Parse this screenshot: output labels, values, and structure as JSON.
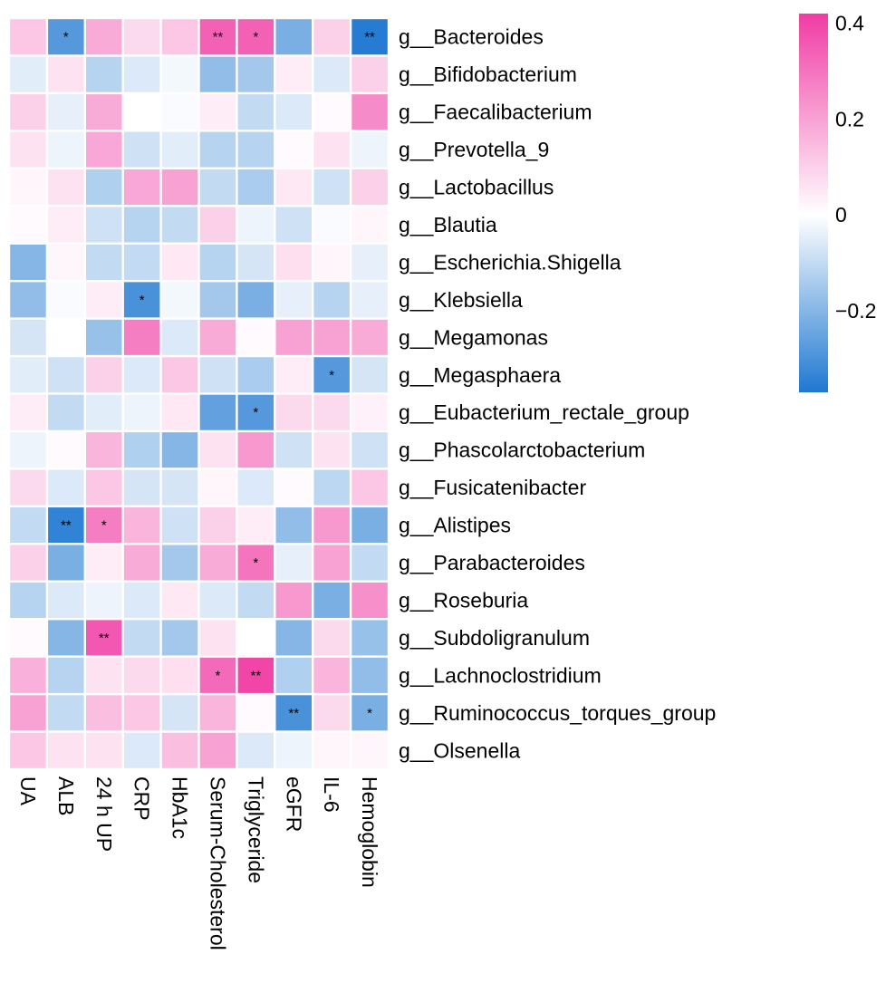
{
  "chart_data": {
    "type": "heatmap",
    "title": "",
    "columns": [
      "UA",
      "ALB",
      "24 h UP",
      "CRP",
      "HbA1c",
      "Serum-Cholesterol",
      "Triglyceride",
      "eGFR",
      "IL-6",
      "Hemoglobin"
    ],
    "rows": [
      "g__Bacteroides",
      "g__Bifidobacterium",
      "g__Faecalibacterium",
      "g__Prevotella_9",
      "g__Lactobacillus",
      "g__Blautia",
      "g__Escherichia.Shigella",
      "g__Klebsiella",
      "g__Megamonas",
      "g__Megasphaera",
      "g__Eubacterium_rectale_group",
      "g__Phascolarctobacterium",
      "g__Fusicatenibacter",
      "g__Alistipes",
      "g__Parabacteroides",
      "g__Roseburia",
      "g__Subdoligranulum",
      "g__Lachnoclostridium",
      "g__Ruminococcus_torques_group",
      "g__Olsenella"
    ],
    "values": [
      [
        0.12,
        -0.28,
        0.18,
        0.08,
        0.12,
        0.34,
        0.34,
        -0.22,
        0.1,
        -0.36
      ],
      [
        -0.05,
        0.06,
        -0.12,
        -0.06,
        -0.02,
        -0.18,
        -0.15,
        0.04,
        -0.06,
        0.1
      ],
      [
        0.1,
        -0.04,
        0.18,
        0.0,
        -0.01,
        0.04,
        -0.1,
        -0.06,
        0.01,
        0.25
      ],
      [
        0.06,
        -0.03,
        0.19,
        -0.08,
        -0.05,
        -0.12,
        -0.12,
        0.01,
        0.06,
        -0.03
      ],
      [
        0.02,
        0.06,
        -0.13,
        0.19,
        0.2,
        -0.1,
        -0.14,
        0.05,
        -0.08,
        0.1
      ],
      [
        0.01,
        0.04,
        -0.08,
        -0.12,
        -0.1,
        0.1,
        -0.03,
        -0.08,
        -0.01,
        0.02
      ],
      [
        -0.2,
        0.02,
        -0.1,
        -0.1,
        0.05,
        -0.12,
        -0.07,
        0.07,
        0.02,
        -0.04
      ],
      [
        -0.18,
        -0.01,
        0.04,
        -0.3,
        -0.02,
        -0.15,
        -0.22,
        -0.04,
        -0.12,
        -0.04
      ],
      [
        -0.07,
        0.0,
        -0.17,
        0.28,
        -0.06,
        0.18,
        0.01,
        0.2,
        0.2,
        0.18
      ],
      [
        -0.05,
        -0.08,
        0.1,
        -0.06,
        0.12,
        -0.08,
        -0.14,
        0.04,
        -0.28,
        -0.07
      ],
      [
        0.04,
        -0.1,
        -0.05,
        -0.03,
        0.05,
        -0.26,
        -0.28,
        0.08,
        0.08,
        0.03
      ],
      [
        -0.03,
        0.01,
        0.16,
        -0.13,
        -0.2,
        0.06,
        0.22,
        -0.08,
        0.06,
        -0.08
      ],
      [
        0.08,
        -0.06,
        0.12,
        -0.07,
        -0.07,
        0.02,
        -0.06,
        0.01,
        -0.11,
        0.12
      ],
      [
        -0.1,
        -0.34,
        0.28,
        0.16,
        -0.08,
        0.1,
        0.04,
        -0.18,
        0.22,
        -0.22
      ],
      [
        0.1,
        -0.22,
        0.04,
        0.18,
        -0.15,
        0.18,
        0.3,
        -0.04,
        0.2,
        -0.1
      ],
      [
        -0.12,
        -0.06,
        -0.03,
        -0.06,
        0.05,
        -0.06,
        -0.1,
        0.22,
        -0.22,
        0.24
      ],
      [
        0.01,
        -0.2,
        0.36,
        -0.1,
        -0.15,
        0.06,
        0.0,
        -0.2,
        0.08,
        -0.17
      ],
      [
        0.17,
        -0.12,
        0.06,
        0.08,
        0.07,
        0.32,
        0.4,
        -0.13,
        0.16,
        -0.18
      ],
      [
        0.2,
        -0.1,
        0.14,
        0.12,
        -0.07,
        0.16,
        0.01,
        -0.3,
        0.08,
        -0.22
      ],
      [
        0.12,
        0.06,
        0.06,
        -0.06,
        0.14,
        0.2,
        -0.06,
        -0.03,
        0.02,
        0.02
      ]
    ],
    "annotations": [
      [
        "",
        "*",
        "",
        "",
        "",
        "**",
        "*",
        "",
        "",
        "**"
      ],
      [
        "",
        "",
        "",
        "",
        "",
        "",
        "",
        "",
        "",
        ""
      ],
      [
        "",
        "",
        "",
        "",
        "",
        "",
        "",
        "",
        "",
        ""
      ],
      [
        "",
        "",
        "",
        "",
        "",
        "",
        "",
        "",
        "",
        ""
      ],
      [
        "",
        "",
        "",
        "",
        "",
        "",
        "",
        "",
        "",
        ""
      ],
      [
        "",
        "",
        "",
        "",
        "",
        "",
        "",
        "",
        "",
        ""
      ],
      [
        "",
        "",
        "",
        "",
        "",
        "",
        "",
        "",
        "",
        ""
      ],
      [
        "",
        "",
        "",
        "*",
        "",
        "",
        "",
        "",
        "",
        ""
      ],
      [
        "",
        "",
        "",
        "",
        "",
        "",
        "",
        "",
        "",
        ""
      ],
      [
        "",
        "",
        "",
        "",
        "",
        "",
        "",
        "",
        "*",
        ""
      ],
      [
        "",
        "",
        "",
        "",
        "",
        "",
        "*",
        "",
        "",
        ""
      ],
      [
        "",
        "",
        "",
        "",
        "",
        "",
        "",
        "",
        "",
        ""
      ],
      [
        "",
        "",
        "",
        "",
        "",
        "",
        "",
        "",
        "",
        ""
      ],
      [
        "",
        "**",
        "*",
        "",
        "",
        "",
        "",
        "",
        "",
        ""
      ],
      [
        "",
        "",
        "",
        "",
        "",
        "",
        "*",
        "",
        "",
        ""
      ],
      [
        "",
        "",
        "",
        "",
        "",
        "",
        "",
        "",
        "",
        ""
      ],
      [
        "",
        "",
        "**",
        "",
        "",
        "",
        "",
        "",
        "",
        ""
      ],
      [
        "",
        "",
        "",
        "",
        "",
        "*",
        "**",
        "",
        "",
        ""
      ],
      [
        "",
        "",
        "",
        "",
        "",
        "",
        "",
        "**",
        "",
        "*"
      ],
      [
        "",
        "",
        "",
        "",
        "",
        "",
        "",
        "",
        "",
        ""
      ]
    ],
    "colorbar": {
      "range": [
        -0.37,
        0.42
      ],
      "ticks": [
        0.4,
        0.2,
        0,
        -0.2
      ],
      "tick_labels": [
        "0.4",
        "0.2",
        "0",
        "−0.2"
      ],
      "low_color": "#1f78d1",
      "mid_color": "#ffffff",
      "high_color": "#f03ca4"
    },
    "grid_color": "#ffffff",
    "legend_position": "top-right"
  }
}
